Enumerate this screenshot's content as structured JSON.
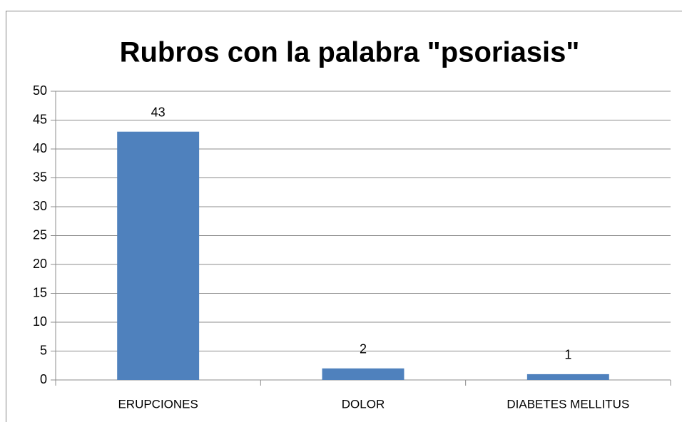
{
  "chart_data": {
    "type": "bar",
    "title": "Rubros con la palabra \"psoriasis\"",
    "categories": [
      "ERUPCIONES",
      "DOLOR",
      "DIABETES MELLITUS"
    ],
    "values": [
      43,
      2,
      1
    ],
    "color": "#4f81bd",
    "ylim": [
      0,
      50
    ],
    "yticks": [
      0,
      5,
      10,
      15,
      20,
      25,
      30,
      35,
      40,
      45,
      50
    ],
    "grid": true,
    "data_labels": true
  }
}
